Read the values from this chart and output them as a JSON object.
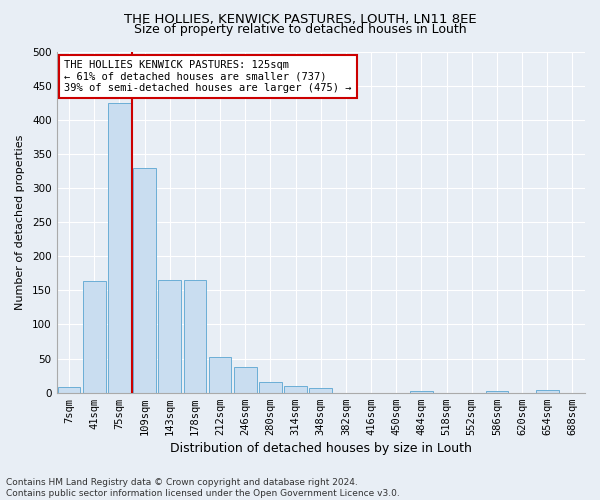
{
  "title1": "THE HOLLIES, KENWICK PASTURES, LOUTH, LN11 8EE",
  "title2": "Size of property relative to detached houses in Louth",
  "xlabel": "Distribution of detached houses by size in Louth",
  "ylabel": "Number of detached properties",
  "bin_labels": [
    "7sqm",
    "41sqm",
    "75sqm",
    "109sqm",
    "143sqm",
    "178sqm",
    "212sqm",
    "246sqm",
    "280sqm",
    "314sqm",
    "348sqm",
    "382sqm",
    "416sqm",
    "450sqm",
    "484sqm",
    "518sqm",
    "552sqm",
    "586sqm",
    "620sqm",
    "654sqm",
    "688sqm"
  ],
  "bar_values": [
    8,
    163,
    425,
    330,
    165,
    165,
    53,
    37,
    15,
    10,
    7,
    0,
    0,
    0,
    2,
    0,
    0,
    3,
    0,
    4,
    0
  ],
  "bar_color": "#c9ddf0",
  "bar_edge_color": "#6baed6",
  "property_line_label": "THE HOLLIES KENWICK PASTURES: 125sqm",
  "annotation_line2": "← 61% of detached houses are smaller (737)",
  "annotation_line3": "39% of semi-detached houses are larger (475) →",
  "vline_color": "#cc0000",
  "vline_x": 2.5,
  "ylim": [
    0,
    500
  ],
  "yticks": [
    0,
    50,
    100,
    150,
    200,
    250,
    300,
    350,
    400,
    450,
    500
  ],
  "footnote1": "Contains HM Land Registry data © Crown copyright and database right 2024.",
  "footnote2": "Contains public sector information licensed under the Open Government Licence v3.0.",
  "bg_color": "#e8eef5",
  "plot_bg_color": "#e8eef5",
  "grid_color": "#ffffff",
  "title1_fontsize": 9.5,
  "title2_fontsize": 9.0,
  "xlabel_fontsize": 9,
  "ylabel_fontsize": 8,
  "tick_fontsize": 7.5,
  "annotation_fontsize": 7.5,
  "footnote_fontsize": 6.5
}
